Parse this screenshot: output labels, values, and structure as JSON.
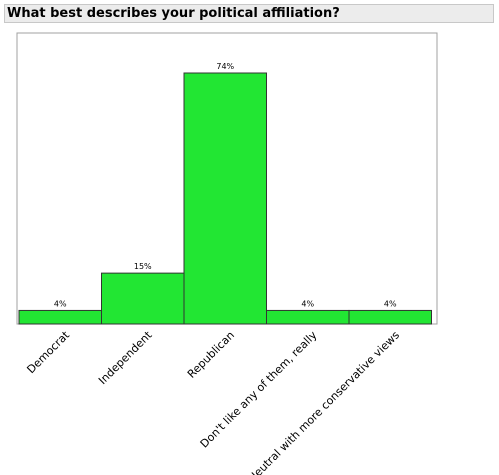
{
  "chart_data": {
    "type": "bar",
    "title": "What best describes your political affiliation?",
    "categories": [
      "Democrat",
      "Independent",
      "Republican",
      "Don't like any of them, really",
      "Neutral with more conservative views"
    ],
    "values": [
      4,
      15,
      74,
      4,
      4
    ],
    "value_labels": [
      "4%",
      "15%",
      "74%",
      "4%",
      "4%"
    ],
    "ylim": [
      0,
      80
    ],
    "grid": false,
    "legend": "none",
    "bar_color": "#22e633",
    "bar_edge_color": "#333333"
  }
}
